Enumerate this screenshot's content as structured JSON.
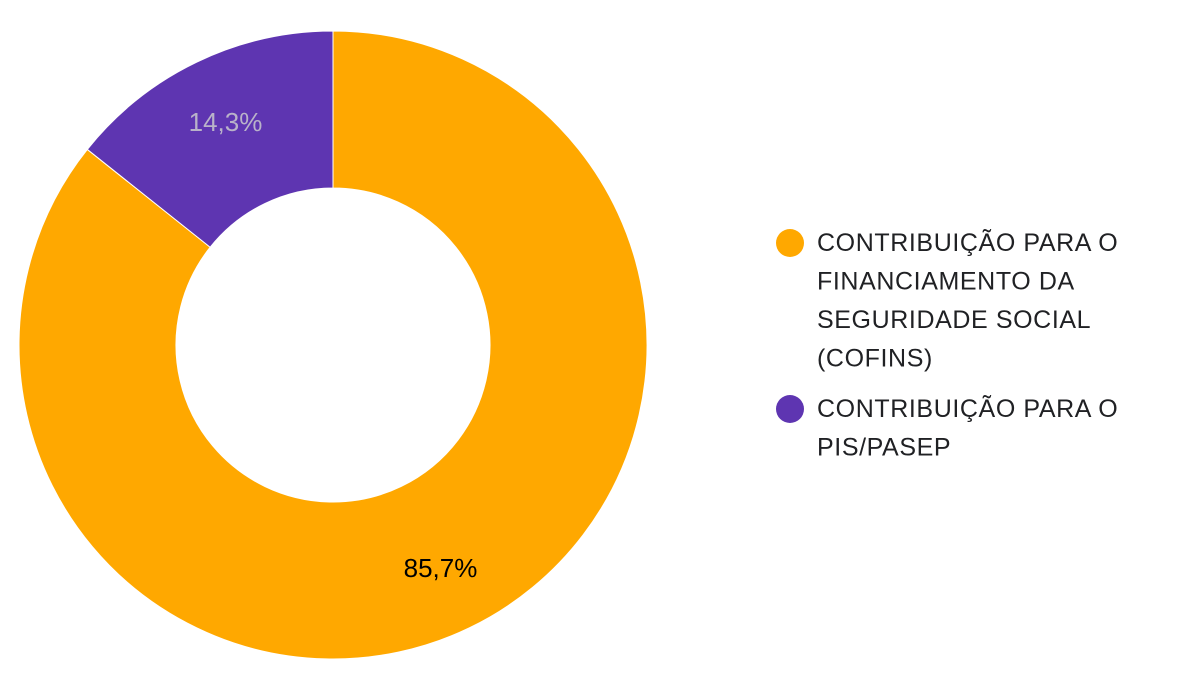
{
  "chart_data": {
    "type": "pie",
    "donut": true,
    "slices": [
      {
        "name": "CONTRIBUIÇÃO PARA O FINANCIAMENTO DA SEGURIDADE SOCIAL (COFINS)",
        "legend_lines": [
          "CONTRIBUIÇÃO PARA O",
          "FINANCIAMENTO DA",
          "SEGURIDADE SOCIAL",
          "(COFINS)"
        ],
        "value": 85.7,
        "label": "85,7%",
        "color": "#FFA800",
        "label_color": "#000000"
      },
      {
        "name": "CONTRIBUIÇÃO PARA O PIS/PASEP",
        "legend_lines": [
          "CONTRIBUIÇÃO PARA O",
          "PIS/PASEP"
        ],
        "value": 14.3,
        "label": "14,3%",
        "color": "#5E35B1",
        "label_color": "#B9B2C9"
      }
    ],
    "start_angle": "12 o'clock",
    "direction": "clockwise",
    "legend_position": "right"
  }
}
